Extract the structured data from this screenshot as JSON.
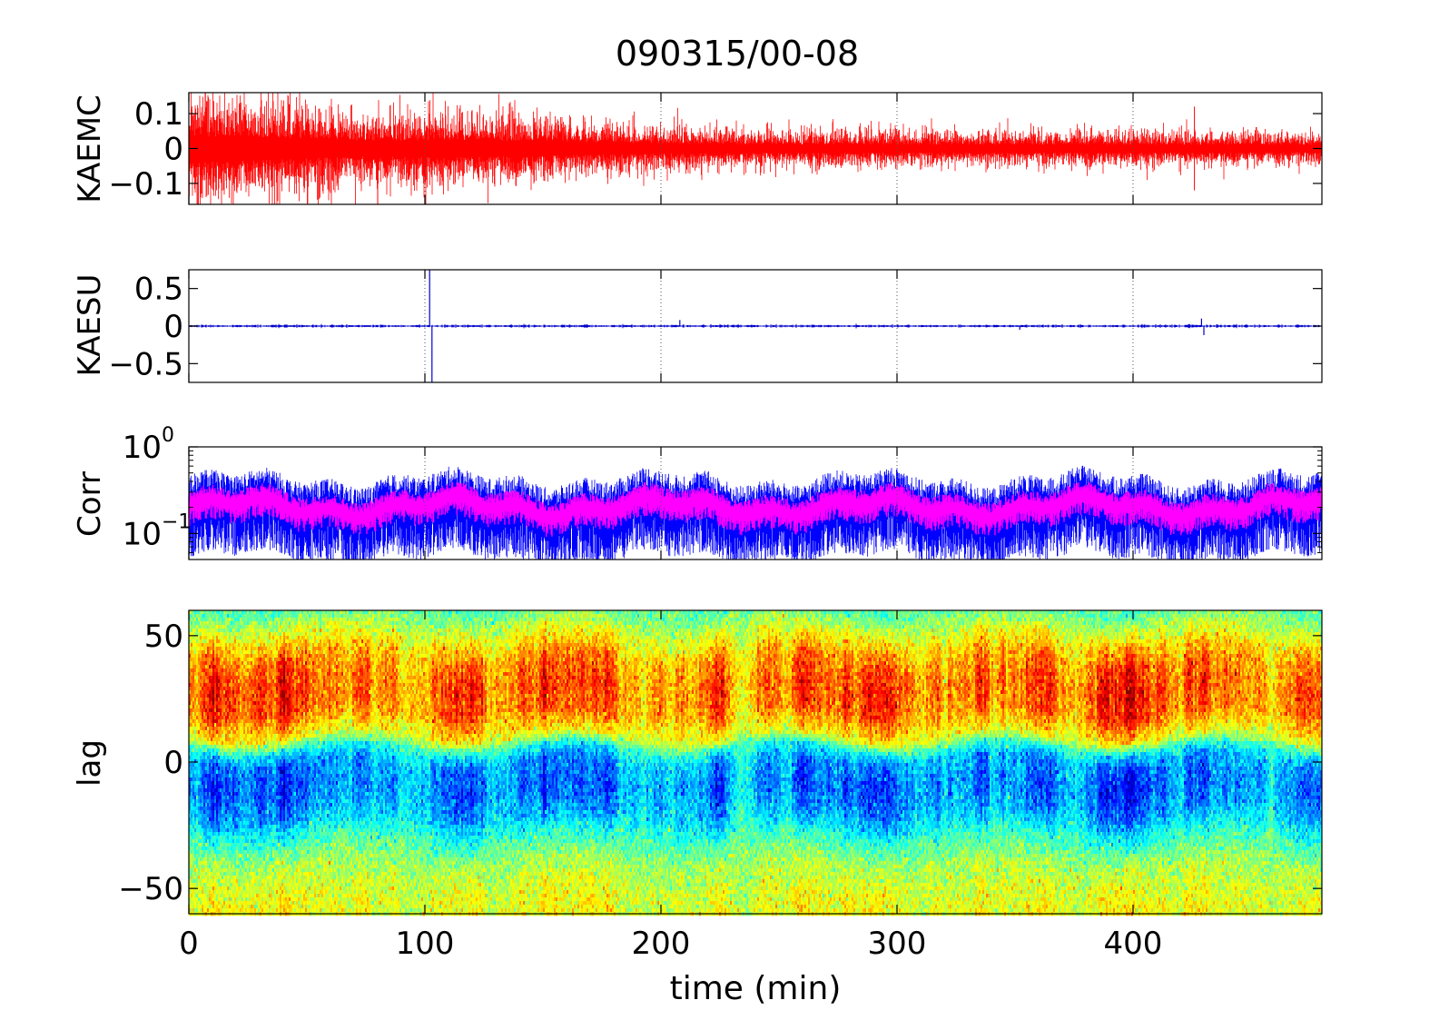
{
  "figure": {
    "title": "090315/00-08",
    "xlabel": "time (min)"
  },
  "colors": {
    "kaemc_trace": "#ff0000",
    "kaesu_trace": "#0000cc",
    "corr_blue": "#0000ff",
    "corr_magenta": "#ff00ff",
    "grid": "#555555"
  },
  "chart_data": [
    {
      "type": "line",
      "ylabel": "KAEMC",
      "xlim": [
        0,
        480
      ],
      "ylim": [
        -0.16,
        0.16
      ],
      "xticks": [
        0,
        100,
        200,
        300,
        400
      ],
      "yticks": [
        0.1,
        0,
        -0.1
      ],
      "ytick_labels": [
        "0.1",
        "0",
        "−0.1"
      ],
      "grid": "x-dotted",
      "series": [
        {
          "color": "#ff0000",
          "amplitude_envelope": {
            "x": [
              0,
              20,
              40,
              60,
              80,
              100,
              120,
              140,
              160,
              180,
              200,
              240,
              280,
              320,
              360,
              400,
              440,
              480
            ],
            "y": [
              0.09,
              0.08,
              0.075,
              0.065,
              0.055,
              0.06,
              0.06,
              0.055,
              0.045,
              0.04,
              0.035,
              0.03,
              0.03,
              0.028,
              0.028,
              0.028,
              0.027,
              0.025
            ]
          },
          "spikes": [
            {
              "x": 7,
              "y": 0.16
            },
            {
              "x": 5,
              "y": -0.14
            },
            {
              "x": 80,
              "y": -0.16
            },
            {
              "x": 45,
              "y": 0.11
            },
            {
              "x": 102,
              "y": 0.1
            },
            {
              "x": 120,
              "y": 0.11
            },
            {
              "x": 426,
              "y": 0.12
            },
            {
              "x": 426,
              "y": -0.12
            },
            {
              "x": 300,
              "y": 0.05
            }
          ]
        }
      ]
    },
    {
      "type": "line",
      "ylabel": "KAESU",
      "xlim": [
        0,
        480
      ],
      "ylim": [
        -0.75,
        0.75
      ],
      "xticks": [
        0,
        100,
        200,
        300,
        400
      ],
      "yticks": [
        0.5,
        0,
        -0.5
      ],
      "ytick_labels": [
        "0.5",
        "0",
        "−0.5"
      ],
      "grid": "x-dotted",
      "series": [
        {
          "color": "#0000cc",
          "baseline": 0,
          "noise_amplitude": 0.008,
          "spikes": [
            {
              "x": 102,
              "y": 0.75
            },
            {
              "x": 103,
              "y": -0.75
            },
            {
              "x": 208,
              "y": 0.08
            },
            {
              "x": 352,
              "y": -0.05
            },
            {
              "x": 429,
              "y": 0.1
            },
            {
              "x": 430,
              "y": -0.12
            }
          ]
        }
      ]
    },
    {
      "type": "line",
      "ylabel": "Corr",
      "xlim": [
        0,
        480
      ],
      "ylim": [
        0.05,
        1
      ],
      "yscale": "log",
      "xticks": [
        0,
        100,
        200,
        300,
        400
      ],
      "yticks": [
        1,
        0.1
      ],
      "ytick_labels": [
        {
          "base": "10",
          "exp": "0"
        },
        {
          "base": "10",
          "exp": "−1"
        }
      ],
      "grid": "x-dotted",
      "series": [
        {
          "color": "#0000ff",
          "median": 0.2,
          "range": [
            0.05,
            0.45
          ]
        },
        {
          "color": "#ff00ff",
          "median": 0.2,
          "range": [
            0.12,
            0.3
          ]
        }
      ]
    },
    {
      "type": "heatmap",
      "ylabel": "lag",
      "xlim": [
        0,
        480
      ],
      "ylim": [
        -60,
        60
      ],
      "xticks": [
        0,
        100,
        200,
        300,
        400
      ],
      "xtick_labels": [
        "0",
        "100",
        "200",
        "300",
        "400"
      ],
      "yticks": [
        50,
        0,
        -50
      ],
      "ytick_labels": [
        "50",
        "0",
        "−50"
      ],
      "colormap": "jet",
      "lag_profile": {
        "lag": [
          60,
          50,
          40,
          30,
          20,
          10,
          5,
          0,
          -10,
          -20,
          -30,
          -40,
          -50,
          -60
        ],
        "value": [
          0.45,
          0.65,
          0.82,
          0.88,
          0.85,
          0.65,
          0.35,
          0.2,
          0.15,
          0.22,
          0.4,
          0.55,
          0.62,
          0.65
        ]
      }
    }
  ]
}
